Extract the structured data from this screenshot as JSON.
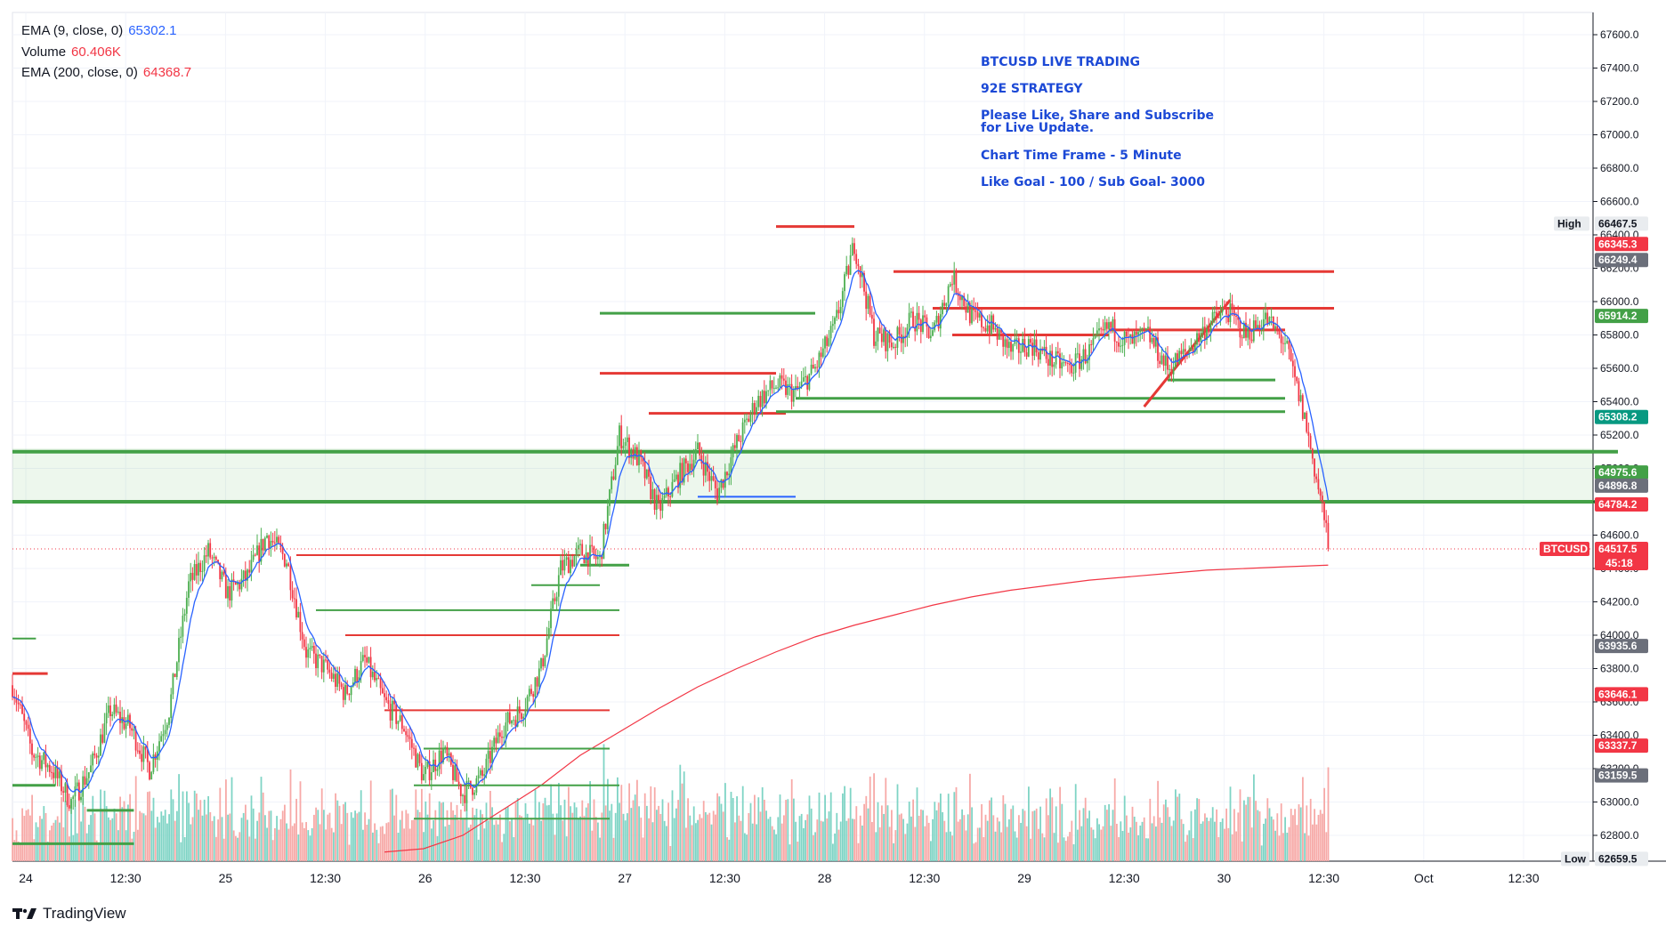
{
  "legend": {
    "ema9_label": "EMA (9, close, 0)",
    "ema9_value": "65302.1",
    "volume_label": "Volume",
    "volume_value": "60.406K",
    "ema200_label": "EMA (200, close, 0)",
    "ema200_value": "64368.7"
  },
  "notes": {
    "line1": "BTCUSD LIVE TRADING",
    "line2": "92E  STRATEGY",
    "line3a": "Please Like, Share and Subscribe",
    "line3b": "for Live Update.",
    "line4": "Chart Time Frame - 5 Minute",
    "line5": "Like Goal - 100 / Sub Goal- 3000"
  },
  "brand": {
    "name": "TradingView",
    "icon": "tradingview-logo-icon"
  },
  "colors": {
    "up": "#26a69a",
    "down": "#ef5350",
    "ema9": "#2962ff",
    "ema200": "#f23645",
    "zone": "#4caf50",
    "draw_green": "#43a047",
    "draw_red": "#e53935"
  },
  "chart_data": {
    "type": "candlestick",
    "symbol": "BTCUSD",
    "timeframe": "5 Minute",
    "ylim": [
      62600,
      67750
    ],
    "y_ticks": [
      62800,
      63000,
      63200,
      63400,
      63600,
      63800,
      64000,
      64200,
      64400,
      64600,
      64800,
      65000,
      65200,
      65400,
      65600,
      65800,
      66000,
      66200,
      66400,
      66600,
      66800,
      67000,
      67200,
      67400,
      67600
    ],
    "y_tick_labels": [
      "62800.0",
      "63000.0",
      "63200.0",
      "63400.0",
      "63600.0",
      "63800.0",
      "64000.0",
      "64200.0",
      "64400.0",
      "64600.0",
      "64800.0",
      "65000.0",
      "65200.0",
      "65400.0",
      "65600.0",
      "65800.0",
      "66000.0",
      "66200.0",
      "66400.0",
      "66600.0",
      "66800.0",
      "67000.0",
      "67200.0",
      "67400.0",
      "67600.0"
    ],
    "x_labels": [
      "24",
      "12:30",
      "25",
      "12:30",
      "26",
      "12:30",
      "27",
      "12:30",
      "28",
      "12:30",
      "29",
      "12:30",
      "30",
      "12:30",
      "Oct",
      "12:30"
    ],
    "price_tags": [
      {
        "label": "High",
        "value": "66467.5",
        "y": 66467.5,
        "color": "#e9ecef",
        "text": "#131722"
      },
      {
        "value": "66345.3",
        "y": 66345.3,
        "color": "#f23645",
        "text": "#ffffff"
      },
      {
        "value": "66249.4",
        "y": 66249.4,
        "color": "#6b6f7a",
        "text": "#ffffff"
      },
      {
        "value": "65914.2",
        "y": 65914.2,
        "color": "#43a047",
        "text": "#ffffff"
      },
      {
        "value": "65308.2",
        "y": 65308.2,
        "color": "#089981",
        "text": "#ffffff"
      },
      {
        "value": "64975.6",
        "y": 64975.6,
        "color": "#43a047",
        "text": "#ffffff"
      },
      {
        "value": "64896.8",
        "y": 64896.8,
        "color": "#6b6f7a",
        "text": "#ffffff"
      },
      {
        "value": "64784.2",
        "y": 64784.2,
        "color": "#f23645",
        "text": "#ffffff"
      },
      {
        "label": "BTCUSD",
        "value": "64517.5",
        "sub": "45:18",
        "y": 64517.5,
        "color": "#f23645",
        "text": "#ffffff"
      },
      {
        "value": "63935.6",
        "y": 63935.6,
        "color": "#6b6f7a",
        "text": "#ffffff"
      },
      {
        "value": "63646.1",
        "y": 63646.1,
        "color": "#f23645",
        "text": "#ffffff"
      },
      {
        "value": "63337.7",
        "y": 63337.7,
        "color": "#f23645",
        "text": "#ffffff"
      },
      {
        "value": "63159.5",
        "y": 63159.5,
        "color": "#6b6f7a",
        "text": "#ffffff"
      },
      {
        "label": "Low",
        "value": "62659.5",
        "y": 62659.5,
        "color": "#e9ecef",
        "text": "#131722"
      }
    ],
    "last_price": 64517.5,
    "support_zone": [
      64790,
      65120
    ],
    "anchors": [
      [
        0,
        63700
      ],
      [
        10,
        63300
      ],
      [
        20,
        63200
      ],
      [
        30,
        63000
      ],
      [
        40,
        63200
      ],
      [
        50,
        63550
      ],
      [
        60,
        63450
      ],
      [
        70,
        63200
      ],
      [
        80,
        63550
      ],
      [
        90,
        64300
      ],
      [
        100,
        64500
      ],
      [
        110,
        64250
      ],
      [
        120,
        64350
      ],
      [
        130,
        64600
      ],
      [
        140,
        64450
      ],
      [
        150,
        63900
      ],
      [
        160,
        63800
      ],
      [
        170,
        63650
      ],
      [
        180,
        63850
      ],
      [
        190,
        63600
      ],
      [
        200,
        63450
      ],
      [
        210,
        63150
      ],
      [
        220,
        63300
      ],
      [
        230,
        63050
      ],
      [
        240,
        63150
      ],
      [
        250,
        63450
      ],
      [
        260,
        63550
      ],
      [
        270,
        63800
      ],
      [
        280,
        64400
      ],
      [
        290,
        64500
      ],
      [
        300,
        64450
      ],
      [
        310,
        65200
      ],
      [
        320,
        65050
      ],
      [
        330,
        64750
      ],
      [
        340,
        64950
      ],
      [
        350,
        65100
      ],
      [
        360,
        64850
      ],
      [
        370,
        65150
      ],
      [
        380,
        65400
      ],
      [
        390,
        65500
      ],
      [
        400,
        65450
      ],
      [
        410,
        65600
      ],
      [
        420,
        65850
      ],
      [
        430,
        66350
      ],
      [
        440,
        65800
      ],
      [
        450,
        65750
      ],
      [
        460,
        65900
      ],
      [
        470,
        65800
      ],
      [
        480,
        66150
      ],
      [
        490,
        65900
      ],
      [
        500,
        65850
      ],
      [
        510,
        65700
      ],
      [
        520,
        65750
      ],
      [
        530,
        65650
      ],
      [
        540,
        65600
      ],
      [
        550,
        65700
      ],
      [
        560,
        65850
      ],
      [
        570,
        65750
      ],
      [
        580,
        65800
      ],
      [
        590,
        65600
      ],
      [
        600,
        65700
      ],
      [
        610,
        65850
      ],
      [
        620,
        65950
      ],
      [
        630,
        65800
      ],
      [
        640,
        65900
      ],
      [
        650,
        65750
      ],
      [
        660,
        65300
      ],
      [
        670,
        64700
      ],
      [
        672,
        64517.5
      ]
    ],
    "ema200_points": [
      [
        190,
        62700
      ],
      [
        210,
        62720
      ],
      [
        230,
        62800
      ],
      [
        250,
        62950
      ],
      [
        270,
        63100
      ],
      [
        290,
        63280
      ],
      [
        310,
        63420
      ],
      [
        330,
        63560
      ],
      [
        350,
        63690
      ],
      [
        370,
        63800
      ],
      [
        390,
        63900
      ],
      [
        410,
        63990
      ],
      [
        430,
        64060
      ],
      [
        450,
        64120
      ],
      [
        470,
        64180
      ],
      [
        490,
        64230
      ],
      [
        510,
        64270
      ],
      [
        530,
        64300
      ],
      [
        550,
        64330
      ],
      [
        570,
        64350
      ],
      [
        590,
        64370
      ],
      [
        610,
        64390
      ],
      [
        630,
        64400
      ],
      [
        650,
        64410
      ],
      [
        672,
        64420
      ]
    ],
    "drawn_levels": [
      {
        "color": "green",
        "y": 65100,
        "x1": 0,
        "x2": 820,
        "w": 4
      },
      {
        "color": "green",
        "y": 64800,
        "x1": 0,
        "x2": 820,
        "w": 4
      },
      {
        "color": "red",
        "y": 66450,
        "x1": 390,
        "x2": 430,
        "w": 3
      },
      {
        "color": "red",
        "y": 66180,
        "x1": 450,
        "x2": 675,
        "w": 3
      },
      {
        "color": "red",
        "y": 65960,
        "x1": 470,
        "x2": 675,
        "w": 3
      },
      {
        "color": "red",
        "y": 65830,
        "x1": 560,
        "x2": 650,
        "w": 3
      },
      {
        "color": "red",
        "y": 65800,
        "x1": 480,
        "x2": 560,
        "w": 3
      },
      {
        "color": "green",
        "y": 65930,
        "x1": 300,
        "x2": 410,
        "w": 3
      },
      {
        "color": "red",
        "y": 65570,
        "x1": 300,
        "x2": 390,
        "w": 3
      },
      {
        "color": "red",
        "y": 65330,
        "x1": 325,
        "x2": 395,
        "w": 3
      },
      {
        "color": "green",
        "y": 65420,
        "x1": 400,
        "x2": 650,
        "w": 3
      },
      {
        "color": "green",
        "y": 65340,
        "x1": 390,
        "x2": 650,
        "w": 3
      },
      {
        "color": "green",
        "y": 65530,
        "x1": 590,
        "x2": 645,
        "w": 3
      },
      {
        "color": "blue",
        "y": 64830,
        "x1": 350,
        "x2": 400,
        "w": 2
      },
      {
        "color": "red",
        "y": 64480,
        "x1": 145,
        "x2": 290,
        "w": 2
      },
      {
        "color": "red",
        "y": 64000,
        "x1": 170,
        "x2": 310,
        "w": 2
      },
      {
        "color": "red",
        "y": 63550,
        "x1": 190,
        "x2": 305,
        "w": 2
      },
      {
        "color": "green",
        "y": 64150,
        "x1": 155,
        "x2": 310,
        "w": 2
      },
      {
        "color": "green",
        "y": 63320,
        "x1": 210,
        "x2": 305,
        "w": 2
      },
      {
        "color": "green",
        "y": 63100,
        "x1": 205,
        "x2": 310,
        "w": 2
      },
      {
        "color": "green",
        "y": 62900,
        "x1": 205,
        "x2": 305,
        "w": 2
      },
      {
        "color": "green",
        "y": 64420,
        "x1": 290,
        "x2": 315,
        "w": 3
      },
      {
        "color": "green",
        "y": 64300,
        "x1": 265,
        "x2": 300,
        "w": 2
      },
      {
        "color": "red",
        "y": 63770,
        "x1": 0,
        "x2": 18,
        "w": 3
      },
      {
        "color": "green",
        "y": 63980,
        "x1": 0,
        "x2": 12,
        "w": 2
      },
      {
        "color": "green",
        "y": 63100,
        "x1": 0,
        "x2": 22,
        "w": 3
      },
      {
        "color": "green",
        "y": 62950,
        "x1": 38,
        "x2": 62,
        "w": 3
      },
      {
        "color": "green",
        "y": 62750,
        "x1": 0,
        "x2": 62,
        "w": 3
      }
    ],
    "trend_line": {
      "x1": 578,
      "y1": 65370,
      "x2": 622,
      "y2": 66010
    }
  }
}
